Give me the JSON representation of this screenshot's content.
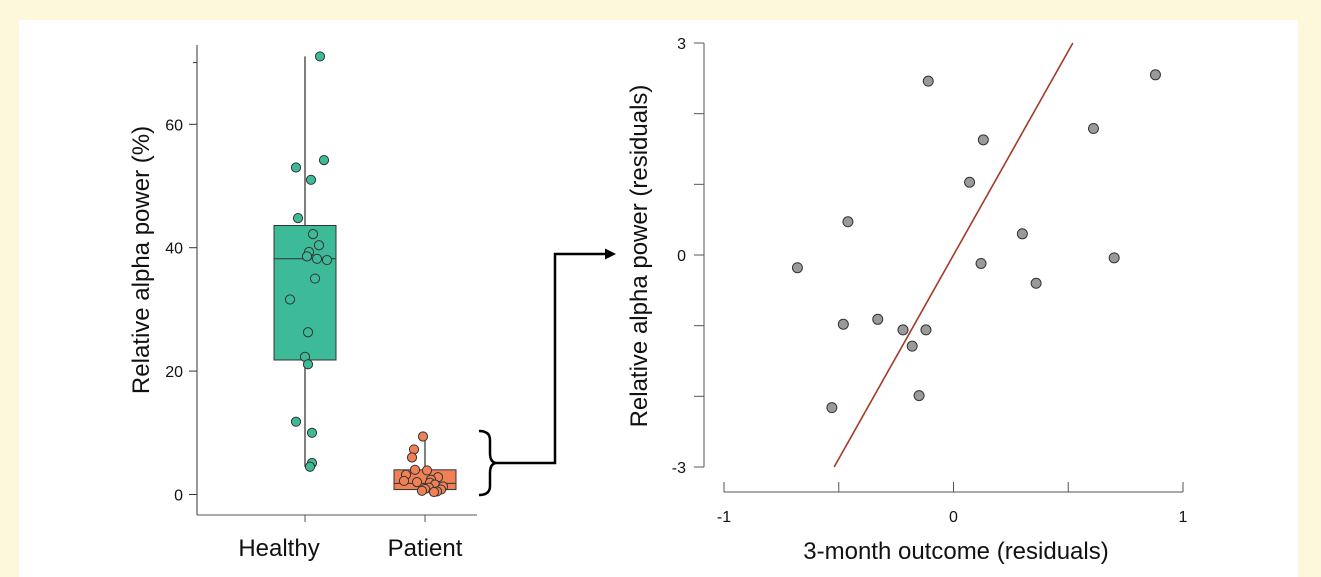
{
  "chart_data": [
    {
      "type": "box",
      "ylabel": "Relative alpha power (%)",
      "ylim": [
        -3,
        73
      ],
      "yticks": [
        0,
        20,
        40,
        60
      ],
      "categories": [
        "Healthy",
        "Patient"
      ],
      "boxes": [
        {
          "name": "Healthy",
          "color": "#3dbb98",
          "whisker_low": 4.5,
          "q1": 21.8,
          "median": 38.2,
          "q3": 43.6,
          "whisker_high": 71,
          "points": [
            71,
            54.2,
            53,
            51,
            44.8,
            42.2,
            40.4,
            39.3,
            38.6,
            38.2,
            38.0,
            35.0,
            31.6,
            26.3,
            22.3,
            21.1,
            11.8,
            10.0,
            5.1,
            4.5
          ],
          "jitter": [
            0.15,
            0.19,
            -0.09,
            0.06,
            -0.07,
            0.08,
            0.14,
            0.04,
            0.02,
            0.12,
            0.22,
            0.1,
            -0.15,
            0.03,
            0.0,
            0.03,
            -0.09,
            0.07,
            0.07,
            0.05
          ]
        },
        {
          "name": "Patient",
          "color": "#f08157",
          "whisker_low": 0.4,
          "q1": 0.8,
          "median": 1.8,
          "q3": 4.0,
          "whisker_high": 9.4,
          "points": [
            9.4,
            7.3,
            6.0,
            4.0,
            3.9,
            3.2,
            2.8,
            2.4,
            2.2,
            2.0,
            1.9,
            1.6,
            1.3,
            1.1,
            0.9,
            0.8,
            0.6,
            0.5,
            0.4
          ],
          "jitter": [
            -0.02,
            -0.11,
            -0.13,
            -0.1,
            0.02,
            -0.19,
            0.13,
            0.06,
            -0.21,
            -0.08,
            0.05,
            0.1,
            0.18,
            0.04,
            0.0,
            0.16,
            -0.03,
            0.12,
            0.09
          ]
        }
      ]
    },
    {
      "type": "scatter",
      "xlabel": "3-month outcome (residuals)",
      "ylabel": "Relative alpha power (residuals)",
      "xlim": [
        -1,
        1
      ],
      "ylim": [
        -3,
        3
      ],
      "xticks": [
        -1,
        -0.5,
        0,
        0.5,
        1
      ],
      "xtick_labels": [
        "-1",
        "",
        "0",
        "",
        "1"
      ],
      "yticks": [
        -3,
        -2,
        -1,
        0,
        1,
        2,
        3
      ],
      "ytick_labels": [
        "-3",
        "",
        "",
        "0",
        "",
        "",
        "3"
      ],
      "point_color": "#9a9a9a",
      "x": [
        -0.11,
        0.13,
        0.07,
        -0.46,
        -0.68,
        -0.48,
        -0.33,
        -0.22,
        -0.18,
        -0.12,
        -0.15,
        -0.53,
        0.12,
        0.3,
        0.36,
        0.61,
        0.7,
        0.88
      ],
      "y": [
        2.46,
        1.63,
        1.03,
        0.47,
        -0.18,
        -0.98,
        -0.91,
        -1.06,
        -1.29,
        -1.06,
        -1.99,
        -2.16,
        -0.12,
        0.3,
        -0.4,
        1.79,
        -0.04,
        2.55
      ],
      "fit_line": {
        "color": "#a33a26",
        "x": [
          -0.52,
          0.52
        ],
        "y": [
          -3,
          3
        ]
      }
    }
  ]
}
